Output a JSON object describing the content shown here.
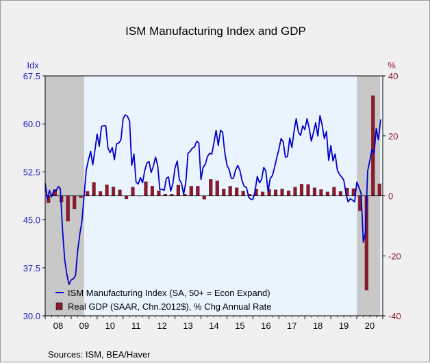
{
  "chart_data": {
    "type": "bar+line",
    "title": "ISM Manufacturing Index and GDP",
    "source": "Sources:  ISM, BEA/Haver",
    "left_axis": {
      "label": "Idx",
      "ylim": [
        30.0,
        67.5
      ],
      "ticks": [
        "30.0",
        "37.5",
        "45.0",
        "52.5",
        "60.0",
        "67.5"
      ],
      "color": "#2020c0"
    },
    "right_axis": {
      "label": "%",
      "ylim": [
        -40,
        40
      ],
      "ticks": [
        "-40",
        "-20",
        "0",
        "20",
        "40"
      ],
      "color": "#8b1a2b"
    },
    "x_axis": {
      "range": [
        2008.0,
        2021.0
      ],
      "year_labels": [
        "08",
        "09",
        "10",
        "11",
        "12",
        "13",
        "14",
        "15",
        "16",
        "17",
        "18",
        "19",
        "20"
      ]
    },
    "recessions": [
      [
        2008.0,
        2009.5
      ],
      [
        2020.0,
        2020.9
      ]
    ],
    "plot_background": "#eaf4ff",
    "recession_color": "#c8c8c8",
    "legend_placement": "bottom-left",
    "series": [
      {
        "name": "ISM Manufacturing Index (SA, 50+ = Econ Expand)",
        "type": "line",
        "axis": "left",
        "color": "#0000c8",
        "x": [
          2008.0,
          2008.083,
          2008.167,
          2008.25,
          2008.333,
          2008.417,
          2008.5,
          2008.583,
          2008.667,
          2008.75,
          2008.833,
          2008.917,
          2009.0,
          2009.083,
          2009.167,
          2009.25,
          2009.333,
          2009.417,
          2009.5,
          2009.583,
          2009.667,
          2009.75,
          2009.833,
          2009.917,
          2010.0,
          2010.083,
          2010.167,
          2010.25,
          2010.333,
          2010.417,
          2010.5,
          2010.583,
          2010.667,
          2010.75,
          2010.833,
          2010.917,
          2011.0,
          2011.083,
          2011.167,
          2011.25,
          2011.333,
          2011.417,
          2011.5,
          2011.583,
          2011.667,
          2011.75,
          2011.833,
          2011.917,
          2012.0,
          2012.083,
          2012.167,
          2012.25,
          2012.333,
          2012.417,
          2012.5,
          2012.583,
          2012.667,
          2012.75,
          2012.833,
          2012.917,
          2013.0,
          2013.083,
          2013.167,
          2013.25,
          2013.333,
          2013.417,
          2013.5,
          2013.583,
          2013.667,
          2013.75,
          2013.833,
          2013.917,
          2014.0,
          2014.083,
          2014.167,
          2014.25,
          2014.333,
          2014.417,
          2014.5,
          2014.583,
          2014.667,
          2014.75,
          2014.833,
          2014.917,
          2015.0,
          2015.083,
          2015.167,
          2015.25,
          2015.333,
          2015.417,
          2015.5,
          2015.583,
          2015.667,
          2015.75,
          2015.833,
          2015.917,
          2016.0,
          2016.083,
          2016.167,
          2016.25,
          2016.333,
          2016.417,
          2016.5,
          2016.583,
          2016.667,
          2016.75,
          2016.833,
          2016.917,
          2017.0,
          2017.083,
          2017.167,
          2017.25,
          2017.333,
          2017.417,
          2017.5,
          2017.583,
          2017.667,
          2017.75,
          2017.833,
          2017.917,
          2018.0,
          2018.083,
          2018.167,
          2018.25,
          2018.333,
          2018.417,
          2018.5,
          2018.583,
          2018.667,
          2018.75,
          2018.833,
          2018.917,
          2019.0,
          2019.083,
          2019.167,
          2019.25,
          2019.333,
          2019.417,
          2019.5,
          2019.583,
          2019.667,
          2019.75,
          2019.833,
          2019.917,
          2020.0,
          2020.083,
          2020.167,
          2020.25,
          2020.333,
          2020.417,
          2020.5,
          2020.583,
          2020.667,
          2020.75,
          2020.833,
          2020.917
        ],
        "values": [
          50.7,
          48.3,
          49.6,
          48.6,
          49.6,
          49.5,
          50.2,
          49.9,
          43.5,
          38.9,
          36.5,
          34.9,
          35.6,
          35.8,
          36.3,
          40.1,
          42.8,
          44.8,
          48.9,
          52.8,
          54.4,
          55.7,
          53.6,
          55.9,
          58.4,
          56.5,
          59.6,
          59.7,
          59.7,
          56.2,
          55.5,
          56.3,
          54.4,
          56.9,
          57.0,
          57.5,
          60.8,
          61.4,
          61.2,
          60.4,
          53.5,
          55.3,
          50.9,
          50.6,
          51.6,
          50.8,
          52.7,
          53.9,
          54.1,
          52.4,
          53.4,
          54.8,
          53.5,
          49.7,
          49.8,
          49.6,
          51.5,
          51.7,
          49.5,
          50.7,
          53.1,
          54.2,
          51.3,
          50.7,
          49.0,
          50.9,
          55.4,
          55.7,
          56.2,
          56.4,
          57.3,
          57.0,
          51.3,
          53.2,
          53.7,
          54.9,
          55.4,
          55.3,
          57.1,
          59.0,
          56.6,
          59.0,
          58.7,
          55.5,
          53.5,
          52.9,
          51.5,
          51.5,
          52.8,
          53.5,
          52.7,
          51.1,
          50.2,
          50.1,
          48.6,
          48.2,
          48.2,
          49.5,
          51.8,
          50.8,
          51.3,
          53.2,
          52.6,
          49.4,
          51.5,
          51.9,
          53.2,
          54.7,
          56.0,
          57.7,
          57.2,
          54.8,
          54.9,
          57.8,
          56.3,
          58.8,
          60.8,
          58.7,
          58.2,
          59.7,
          59.1,
          60.8,
          59.3,
          57.3,
          58.7,
          60.2,
          58.1,
          61.3,
          59.8,
          57.7,
          58.8,
          54.3,
          56.6,
          54.2,
          55.3,
          52.8,
          52.1,
          51.7,
          51.2,
          49.1,
          47.8,
          48.3,
          48.1,
          47.8,
          50.9,
          50.1,
          49.1,
          41.5,
          43.1,
          52.6,
          54.2,
          56.0,
          55.4,
          59.3,
          57.5,
          60.7
        ]
      },
      {
        "name": "Real GDP (SAAR, Chn.2012$), % Chg Annual Rate",
        "type": "bar",
        "axis": "right",
        "color": "#8b1a2b",
        "x": [
          2008.0,
          2008.25,
          2008.5,
          2008.75,
          2009.0,
          2009.25,
          2009.5,
          2009.75,
          2010.0,
          2010.25,
          2010.5,
          2010.75,
          2011.0,
          2011.25,
          2011.5,
          2011.75,
          2012.0,
          2012.25,
          2012.5,
          2012.75,
          2013.0,
          2013.25,
          2013.5,
          2013.75,
          2014.0,
          2014.25,
          2014.5,
          2014.75,
          2015.0,
          2015.25,
          2015.5,
          2015.75,
          2016.0,
          2016.25,
          2016.5,
          2016.75,
          2017.0,
          2017.25,
          2017.5,
          2017.75,
          2018.0,
          2018.25,
          2018.5,
          2018.75,
          2019.0,
          2019.25,
          2019.5,
          2019.75,
          2020.0,
          2020.25,
          2020.5,
          2020.75
        ],
        "values": [
          -2.3,
          2.1,
          -2.1,
          -8.4,
          -4.4,
          -0.6,
          1.5,
          4.5,
          1.5,
          3.7,
          3.0,
          2.0,
          -1.0,
          2.9,
          -0.1,
          4.7,
          3.2,
          1.7,
          0.5,
          0.5,
          3.6,
          0.5,
          3.2,
          3.2,
          -1.1,
          5.5,
          5.0,
          2.3,
          3.2,
          2.7,
          1.6,
          0.5,
          2.3,
          1.3,
          2.2,
          2.0,
          2.3,
          1.7,
          2.9,
          3.9,
          3.8,
          2.7,
          2.1,
          1.3,
          2.9,
          1.5,
          2.6,
          2.4,
          -5.0,
          -31.4,
          33.4,
          4.0
        ]
      }
    ]
  }
}
